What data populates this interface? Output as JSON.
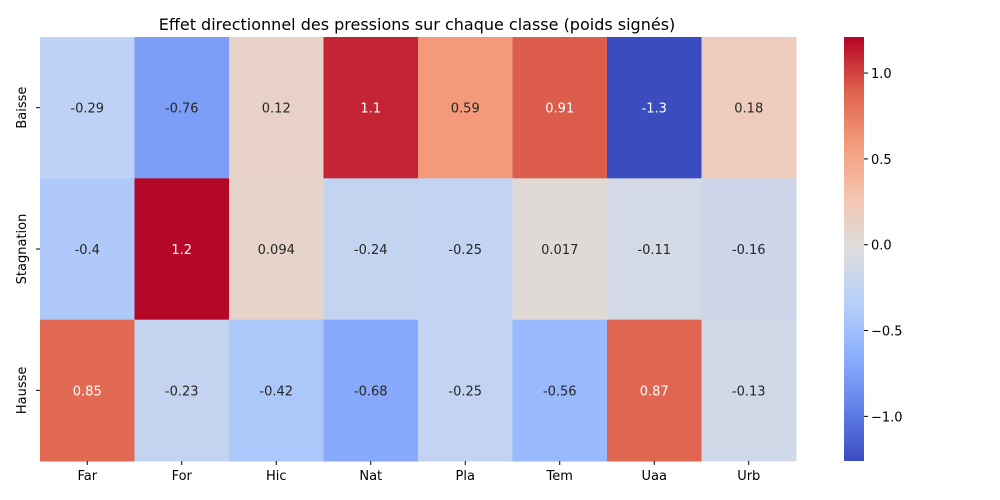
{
  "chart_data": {
    "type": "heatmap",
    "title": "Effet directionnel des pressions sur chaque classe (poids signés)",
    "xlabel": "",
    "ylabel": "",
    "x_categories": [
      "Far",
      "For",
      "Hic",
      "Nat",
      "Pla",
      "Tem",
      "Uaa",
      "Urb"
    ],
    "y_categories": [
      "Baisse",
      "Stagnation",
      "Hausse"
    ],
    "values": [
      [
        -0.29,
        -0.76,
        0.12,
        1.1,
        0.59,
        0.91,
        -1.3,
        0.18
      ],
      [
        -0.4,
        1.2,
        0.094,
        -0.24,
        -0.25,
        0.017,
        -0.11,
        -0.16
      ],
      [
        0.85,
        -0.23,
        -0.42,
        -0.68,
        -0.25,
        -0.56,
        0.87,
        -0.13
      ]
    ],
    "cell_labels": [
      [
        "-0.29",
        "-0.76",
        "0.12",
        "1.1",
        "0.59",
        "0.91",
        "-1.3",
        "0.18"
      ],
      [
        "-0.4",
        "1.2",
        "0.094",
        "-0.24",
        "-0.25",
        "0.017",
        "-0.11",
        "-0.16"
      ],
      [
        "0.85",
        "-0.23",
        "-0.42",
        "-0.68",
        "-0.25",
        "-0.56",
        "0.87",
        "-0.13"
      ]
    ],
    "colormap": "coolwarm",
    "vmin": -1.26,
    "vmax": 1.21,
    "colorbar_ticks": [
      -1.0,
      -0.5,
      0.0,
      0.5,
      1.0
    ],
    "colorbar_tick_labels": [
      "−1.0",
      "−0.5",
      "0.0",
      "0.5",
      "1.0"
    ],
    "grid": false,
    "legend": "colorbar-right"
  }
}
